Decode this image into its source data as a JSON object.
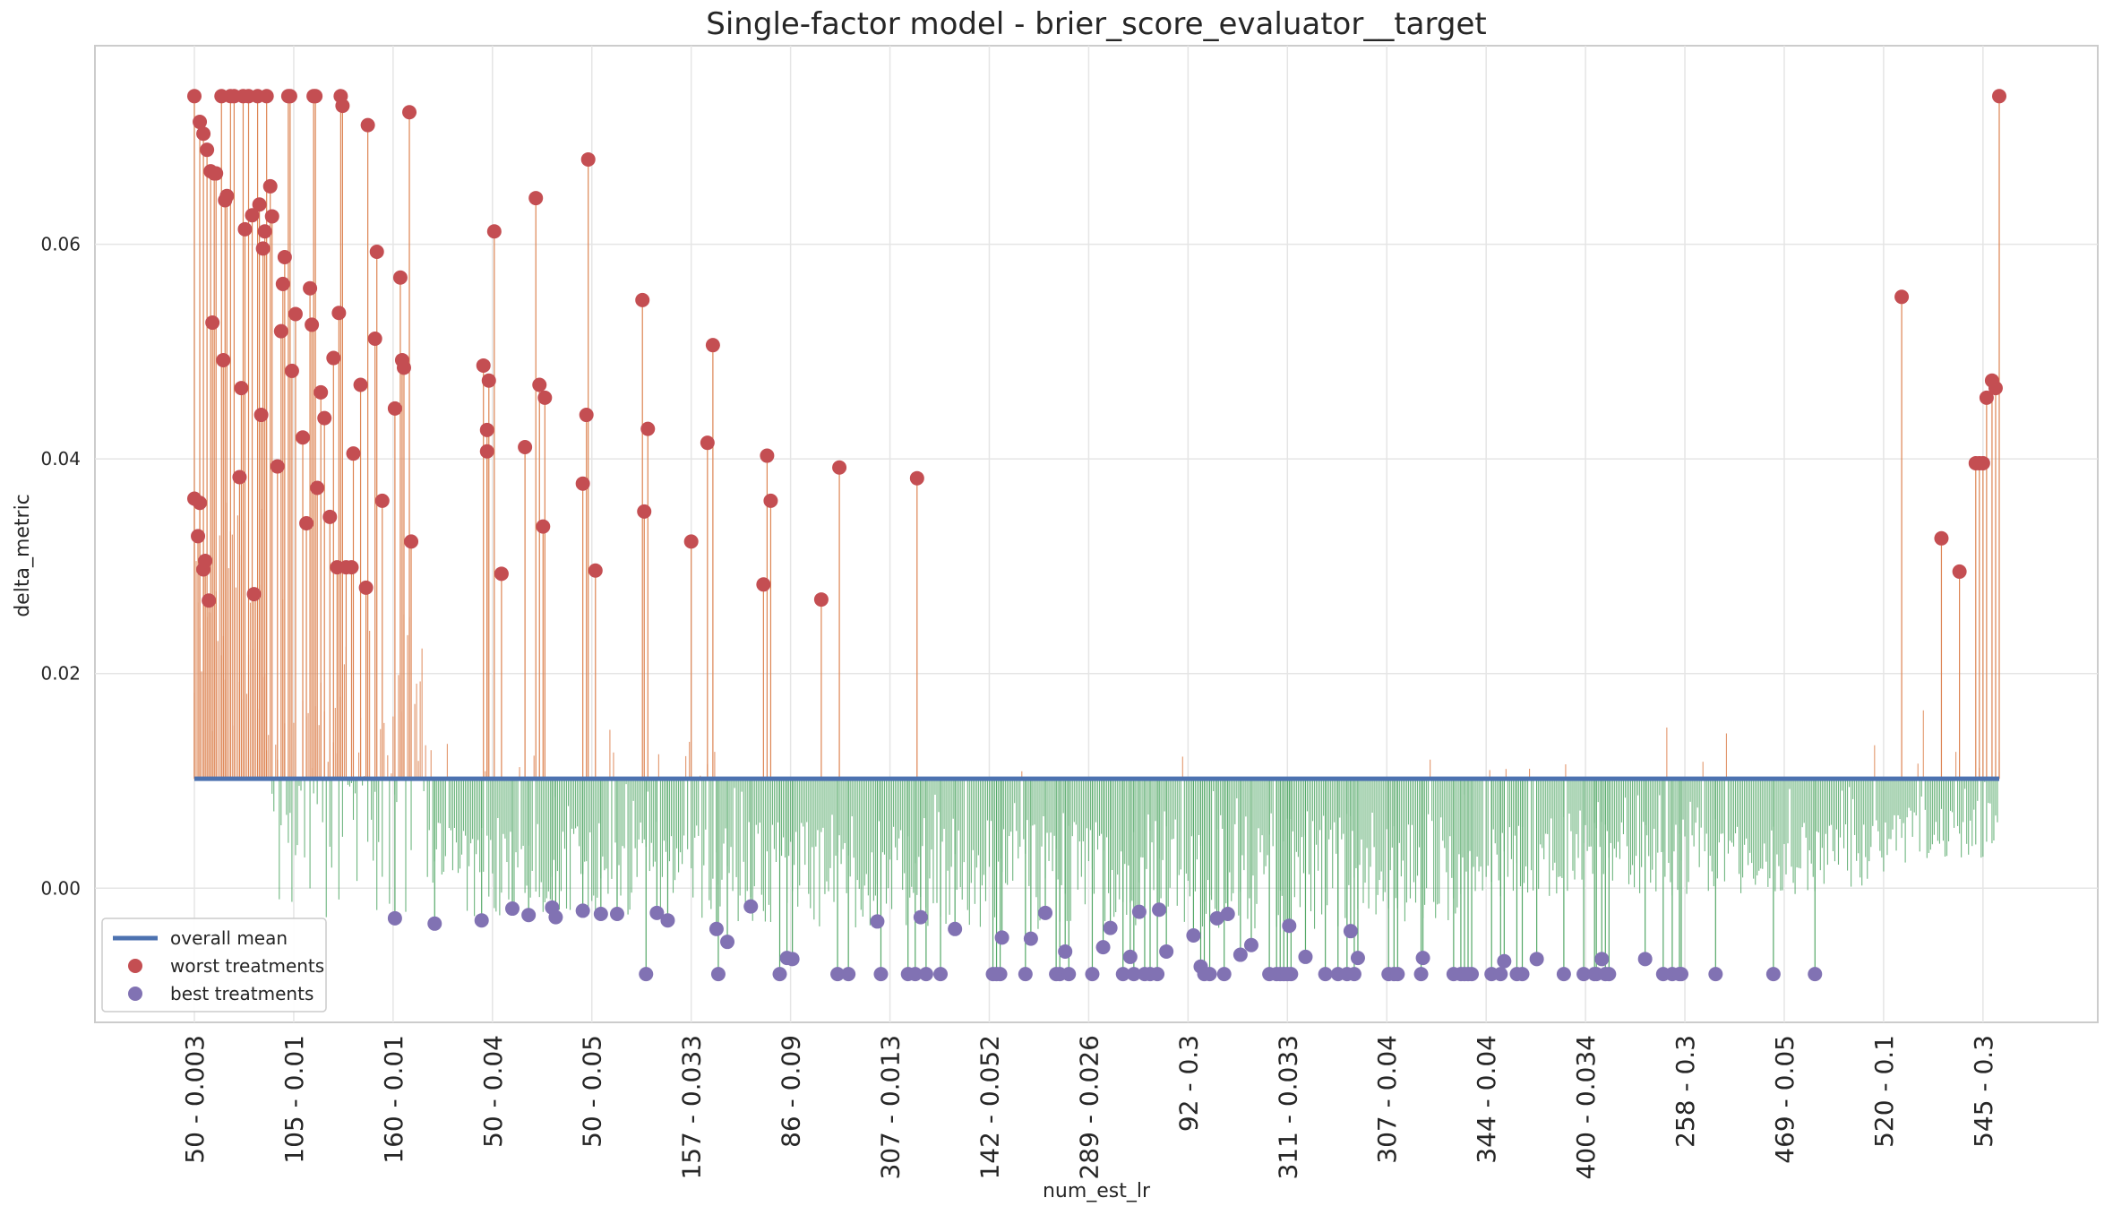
{
  "chart_data": {
    "type": "lollipop",
    "title": "Single-factor model - brier_score_evaluator__target",
    "xlabel": "num_est_lr",
    "ylabel": "delta_metric",
    "ylim": [
      -0.0125,
      0.0785
    ],
    "y_ticks": [
      0.0,
      0.02,
      0.04,
      0.06
    ],
    "y_tick_labels": [
      "0.00",
      "0.02",
      "0.04",
      "0.06"
    ],
    "x_count": 1000,
    "x_tick_positions": [
      0,
      55,
      110,
      165,
      220,
      275,
      330,
      385,
      440,
      495,
      550,
      605,
      660,
      715,
      770,
      825,
      880,
      935,
      990
    ],
    "x_tick_labels": [
      "50 - 0.003",
      "105 - 0.01",
      "160 - 0.01",
      "50 - 0.04",
      "50 - 0.05",
      "157 - 0.033",
      "86 - 0.09",
      "307 - 0.013",
      "142 - 0.052",
      "289 - 0.026",
      "92 - 0.3",
      "311 - 0.033",
      "307 - 0.04",
      "344 - 0.04",
      "400 - 0.034",
      "258 - 0.3",
      "469 - 0.05",
      "520 - 0.1",
      "545 - 0.3"
    ],
    "overall_mean": 0.0102,
    "grid": true,
    "legend_position": "lower-left",
    "legend": [
      {
        "label": "overall mean",
        "kind": "line",
        "color": "#4c72b0"
      },
      {
        "label": "worst treatments",
        "kind": "dot",
        "color": "#c44e52"
      },
      {
        "label": "best treatments",
        "kind": "dot",
        "color": "#8172b3"
      }
    ],
    "colors": {
      "above": "#dd8452",
      "below": "#55a868",
      "mean": "#4c72b0",
      "worst": "#c44e52",
      "best": "#8172b3"
    },
    "worst_treatments": [
      [
        0,
        0.0738
      ],
      [
        0,
        0.0363
      ],
      [
        2,
        0.0328
      ],
      [
        3,
        0.0359
      ],
      [
        3,
        0.0714
      ],
      [
        5,
        0.0297
      ],
      [
        5,
        0.0703
      ],
      [
        6,
        0.0305
      ],
      [
        7,
        0.0688
      ],
      [
        8,
        0.0268
      ],
      [
        9,
        0.0668
      ],
      [
        10,
        0.0527
      ],
      [
        11,
        0.0666
      ],
      [
        12,
        0.0666
      ],
      [
        15,
        0.0738
      ],
      [
        16,
        0.0492
      ],
      [
        17,
        0.0641
      ],
      [
        18,
        0.0645
      ],
      [
        20,
        0.0738
      ],
      [
        22,
        0.0738
      ],
      [
        25,
        0.0383
      ],
      [
        26,
        0.0466
      ],
      [
        27,
        0.0738
      ],
      [
        28,
        0.0614
      ],
      [
        30,
        0.0738
      ],
      [
        32,
        0.0627
      ],
      [
        33,
        0.0274
      ],
      [
        35,
        0.0738
      ],
      [
        36,
        0.0637
      ],
      [
        37,
        0.0441
      ],
      [
        38,
        0.0596
      ],
      [
        39,
        0.0612
      ],
      [
        40,
        0.0738
      ],
      [
        42,
        0.0654
      ],
      [
        43,
        0.0626
      ],
      [
        46,
        0.0393
      ],
      [
        48,
        0.0519
      ],
      [
        49,
        0.0563
      ],
      [
        50,
        0.0588
      ],
      [
        52,
        0.0738
      ],
      [
        53,
        0.0738
      ],
      [
        54,
        0.0482
      ],
      [
        56,
        0.0535
      ],
      [
        60,
        0.042
      ],
      [
        62,
        0.034
      ],
      [
        64,
        0.0559
      ],
      [
        65,
        0.0525
      ],
      [
        66,
        0.0738
      ],
      [
        67,
        0.0738
      ],
      [
        68,
        0.0373
      ],
      [
        70,
        0.0462
      ],
      [
        72,
        0.0438
      ],
      [
        75,
        0.0346
      ],
      [
        77,
        0.0494
      ],
      [
        79,
        0.0299
      ],
      [
        80,
        0.0536
      ],
      [
        81,
        0.0738
      ],
      [
        82,
        0.0729
      ],
      [
        84,
        0.0299
      ],
      [
        87,
        0.0299
      ],
      [
        88,
        0.0405
      ],
      [
        92,
        0.0469
      ],
      [
        95,
        0.028
      ],
      [
        96,
        0.0711
      ],
      [
        100,
        0.0512
      ],
      [
        101,
        0.0593
      ],
      [
        104,
        0.0361
      ],
      [
        111,
        0.0447
      ],
      [
        114,
        0.0569
      ],
      [
        115,
        0.0492
      ],
      [
        116,
        0.0485
      ],
      [
        119,
        0.0723
      ],
      [
        120,
        0.0323
      ],
      [
        160,
        0.0487
      ],
      [
        162,
        0.0427
      ],
      [
        162,
        0.0407
      ],
      [
        163,
        0.0473
      ],
      [
        166,
        0.0612
      ],
      [
        170,
        0.0293
      ],
      [
        183,
        0.0411
      ],
      [
        189,
        0.0643
      ],
      [
        191,
        0.0469
      ],
      [
        193,
        0.0337
      ],
      [
        194,
        0.0457
      ],
      [
        215,
        0.0377
      ],
      [
        217,
        0.0441
      ],
      [
        218,
        0.0679
      ],
      [
        222,
        0.0296
      ],
      [
        248,
        0.0548
      ],
      [
        249,
        0.0351
      ],
      [
        251,
        0.0428
      ],
      [
        275,
        0.0323
      ],
      [
        284,
        0.0415
      ],
      [
        287,
        0.0506
      ],
      [
        315,
        0.0283
      ],
      [
        317,
        0.0403
      ],
      [
        319,
        0.0361
      ],
      [
        347,
        0.0269
      ],
      [
        357,
        0.0392
      ],
      [
        400,
        0.0382
      ],
      [
        945,
        0.0551
      ],
      [
        967,
        0.0326
      ],
      [
        977,
        0.0295
      ],
      [
        986,
        0.0396
      ],
      [
        988,
        0.0396
      ],
      [
        990,
        0.0396
      ],
      [
        992,
        0.0457
      ],
      [
        995,
        0.0473
      ],
      [
        997,
        0.0466
      ],
      [
        999,
        0.0738
      ]
    ],
    "best_treatments": [
      [
        111,
        -0.0028
      ],
      [
        133,
        -0.0033
      ],
      [
        159,
        -0.003
      ],
      [
        176,
        -0.0019
      ],
      [
        185,
        -0.0025
      ],
      [
        198,
        -0.0018
      ],
      [
        200,
        -0.0027
      ],
      [
        215,
        -0.0021
      ],
      [
        225,
        -0.0024
      ],
      [
        234,
        -0.0024
      ],
      [
        250,
        -0.008
      ],
      [
        256,
        -0.0023
      ],
      [
        262,
        -0.003
      ],
      [
        289,
        -0.0038
      ],
      [
        290,
        -0.008
      ],
      [
        295,
        -0.005
      ],
      [
        308,
        -0.0017
      ],
      [
        324,
        -0.008
      ],
      [
        328,
        -0.0065
      ],
      [
        331,
        -0.0066
      ],
      [
        356,
        -0.008
      ],
      [
        362,
        -0.008
      ],
      [
        378,
        -0.0031
      ],
      [
        380,
        -0.008
      ],
      [
        395,
        -0.008
      ],
      [
        399,
        -0.008
      ],
      [
        402,
        -0.0027
      ],
      [
        405,
        -0.008
      ],
      [
        413,
        -0.008
      ],
      [
        421,
        -0.0038
      ],
      [
        442,
        -0.008
      ],
      [
        444,
        -0.008
      ],
      [
        446,
        -0.008
      ],
      [
        447,
        -0.0046
      ],
      [
        460,
        -0.008
      ],
      [
        463,
        -0.0047
      ],
      [
        471,
        -0.0023
      ],
      [
        477,
        -0.008
      ],
      [
        479,
        -0.008
      ],
      [
        482,
        -0.0059
      ],
      [
        484,
        -0.008
      ],
      [
        497,
        -0.008
      ],
      [
        503,
        -0.0055
      ],
      [
        507,
        -0.0037
      ],
      [
        514,
        -0.008
      ],
      [
        518,
        -0.0064
      ],
      [
        520,
        -0.008
      ],
      [
        523,
        -0.0022
      ],
      [
        526,
        -0.008
      ],
      [
        529,
        -0.008
      ],
      [
        533,
        -0.008
      ],
      [
        534,
        -0.002
      ],
      [
        538,
        -0.0059
      ],
      [
        553,
        -0.0044
      ],
      [
        557,
        -0.0073
      ],
      [
        559,
        -0.008
      ],
      [
        562,
        -0.008
      ],
      [
        566,
        -0.0028
      ],
      [
        570,
        -0.008
      ],
      [
        572,
        -0.0024
      ],
      [
        579,
        -0.0062
      ],
      [
        585,
        -0.0053
      ],
      [
        595,
        -0.008
      ],
      [
        599,
        -0.008
      ],
      [
        601,
        -0.008
      ],
      [
        603,
        -0.008
      ],
      [
        605,
        -0.008
      ],
      [
        607,
        -0.008
      ],
      [
        606,
        -0.0035
      ],
      [
        615,
        -0.0064
      ],
      [
        626,
        -0.008
      ],
      [
        633,
        -0.008
      ],
      [
        638,
        -0.008
      ],
      [
        640,
        -0.004
      ],
      [
        642,
        -0.008
      ],
      [
        644,
        -0.0065
      ],
      [
        661,
        -0.008
      ],
      [
        664,
        -0.008
      ],
      [
        666,
        -0.008
      ],
      [
        679,
        -0.008
      ],
      [
        680,
        -0.0065
      ],
      [
        697,
        -0.008
      ],
      [
        701,
        -0.008
      ],
      [
        703,
        -0.008
      ],
      [
        705,
        -0.008
      ],
      [
        707,
        -0.008
      ],
      [
        718,
        -0.008
      ],
      [
        723,
        -0.008
      ],
      [
        725,
        -0.0068
      ],
      [
        732,
        -0.008
      ],
      [
        735,
        -0.008
      ],
      [
        743,
        -0.0066
      ],
      [
        758,
        -0.008
      ],
      [
        769,
        -0.008
      ],
      [
        775,
        -0.008
      ],
      [
        776,
        -0.008
      ],
      [
        779,
        -0.0066
      ],
      [
        781,
        -0.008
      ],
      [
        783,
        -0.008
      ],
      [
        803,
        -0.0066
      ],
      [
        813,
        -0.008
      ],
      [
        818,
        -0.008
      ],
      [
        822,
        -0.008
      ],
      [
        823,
        -0.008
      ],
      [
        842,
        -0.008
      ],
      [
        874,
        -0.008
      ],
      [
        897,
        -0.008
      ]
    ]
  }
}
